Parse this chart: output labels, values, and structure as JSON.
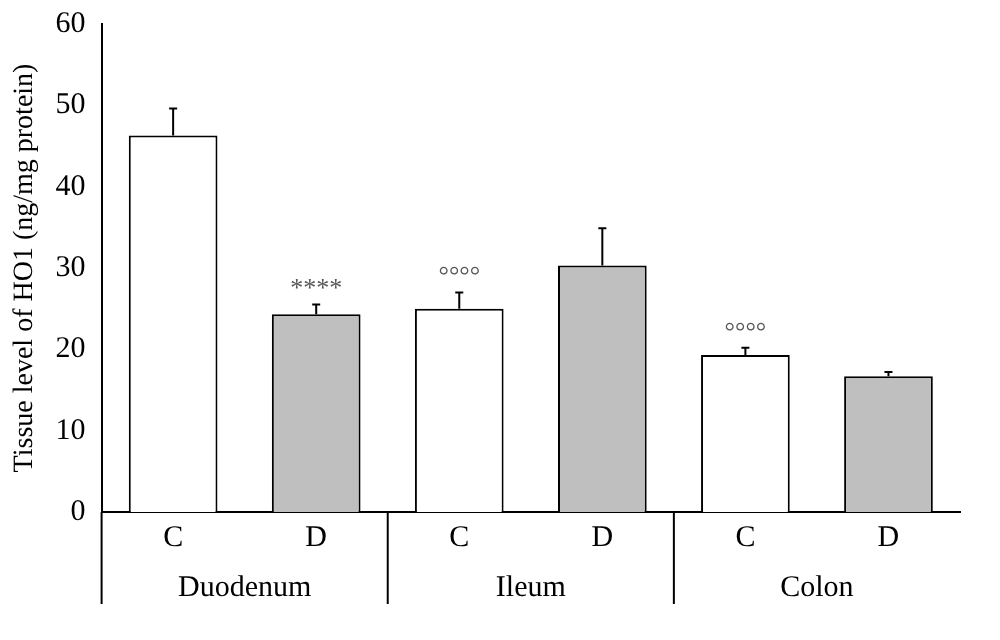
{
  "chart_data": {
    "type": "bar",
    "ylabel": "Tissue level of HO1 (ng/mg protein)",
    "categories": [
      "C",
      "D",
      "C",
      "D",
      "C",
      "D"
    ],
    "values": [
      46.3,
      24.3,
      25.0,
      30.3,
      19.3,
      16.7
    ],
    "colors": [
      "#ffffff",
      "#bfbfbf",
      "#ffffff",
      "#bfbfbf",
      "#ffffff",
      "#bfbfbf"
    ],
    "errors": [
      3.3,
      1.2,
      2.0,
      4.6,
      0.9,
      0.5
    ],
    "value_labels": [
      null,
      "****",
      "°°°°",
      null,
      "°°°°",
      null
    ],
    "annotations": [
      "Duodenum",
      "Ileum",
      "Colon"
    ],
    "ylim": [
      0,
      60
    ],
    "yticks": [
      0,
      10,
      20,
      30,
      40,
      50,
      60
    ],
    "grid": false,
    "legend": false
  }
}
